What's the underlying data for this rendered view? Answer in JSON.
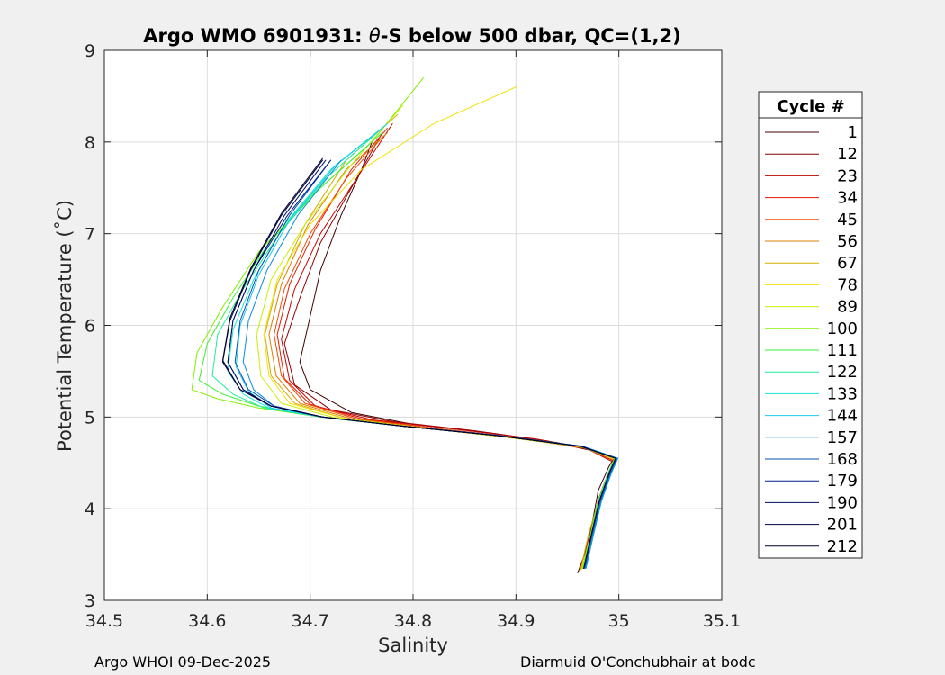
{
  "chart_data": {
    "type": "line",
    "title": "Argo WMO 6901931: θ-S below 500 dbar,  QC=(1,2)",
    "title_parts": {
      "prefix": "Argo WMO 6901931: ",
      "theta": "θ",
      "suffix": "-S below 500 dbar,  QC=(1,2)"
    },
    "xlabel": "Salinity",
    "ylabel": "Potential Temperature (˚C)",
    "xlim": [
      34.5,
      35.1
    ],
    "ylim": [
      3,
      9
    ],
    "xticks": [
      34.5,
      34.6,
      34.7,
      34.8,
      34.9,
      35,
      35.1
    ],
    "xtick_labels": [
      "34.5",
      "34.6",
      "34.7",
      "34.8",
      "34.9",
      "35",
      "35.1"
    ],
    "yticks": [
      3,
      4,
      5,
      6,
      7,
      8,
      9
    ],
    "ytick_labels": [
      "3",
      "4",
      "5",
      "6",
      "7",
      "8",
      "9"
    ],
    "grid": true,
    "legend": {
      "title": "Cycle #",
      "placement": "right",
      "entries": [
        {
          "label": "1",
          "color": "#400000"
        },
        {
          "label": "12",
          "color": "#8c0000"
        },
        {
          "label": "23",
          "color": "#c80000"
        },
        {
          "label": "34",
          "color": "#e61a00"
        },
        {
          "label": "45",
          "color": "#f04b00"
        },
        {
          "label": "56",
          "color": "#dc7d00"
        },
        {
          "label": "67",
          "color": "#d7aa00"
        },
        {
          "label": "78",
          "color": "#f0e100"
        },
        {
          "label": "89",
          "color": "#c8f000"
        },
        {
          "label": "100",
          "color": "#82f000"
        },
        {
          "label": "111",
          "color": "#3cf032"
        },
        {
          "label": "122",
          "color": "#1ef096"
        },
        {
          "label": "133",
          "color": "#14e6d2"
        },
        {
          "label": "144",
          "color": "#14c8f0"
        },
        {
          "label": "157",
          "color": "#0a8cdc"
        },
        {
          "label": "168",
          "color": "#0550b4"
        },
        {
          "label": "179",
          "color": "#001e8c"
        },
        {
          "label": "190",
          "color": "#000a64"
        },
        {
          "label": "201",
          "color": "#000046"
        },
        {
          "label": "212",
          "color": "#000032"
        }
      ]
    },
    "series": [
      {
        "name": "1",
        "x": [
          34.96,
          34.97,
          34.975,
          34.98,
          34.99,
          34.995,
          34.98,
          34.94,
          34.88,
          34.8,
          34.74,
          34.7,
          34.69,
          34.7,
          34.71,
          34.73,
          34.75,
          34.76
        ],
        "y": [
          3.3,
          3.6,
          3.9,
          4.2,
          4.45,
          4.55,
          4.62,
          4.72,
          4.82,
          4.92,
          5.05,
          5.3,
          5.6,
          6.1,
          6.6,
          7.2,
          7.7,
          8.0
        ]
      },
      {
        "name": "12",
        "x": [
          34.965,
          34.972,
          34.98,
          34.99,
          34.995,
          34.975,
          34.93,
          34.86,
          34.78,
          34.72,
          34.685,
          34.675,
          34.69,
          34.71,
          34.74,
          34.77
        ],
        "y": [
          3.35,
          3.7,
          4.1,
          4.4,
          4.52,
          4.63,
          4.74,
          4.85,
          4.95,
          5.08,
          5.35,
          5.8,
          6.3,
          6.9,
          7.5,
          8.1
        ]
      },
      {
        "name": "23",
        "x": [
          34.962,
          34.97,
          34.978,
          34.99,
          34.996,
          34.97,
          34.92,
          34.84,
          34.76,
          34.705,
          34.68,
          34.672,
          34.685,
          34.71,
          34.745,
          34.78
        ],
        "y": [
          3.32,
          3.65,
          4.0,
          4.35,
          4.5,
          4.65,
          4.76,
          4.87,
          4.97,
          5.12,
          5.4,
          5.85,
          6.4,
          7.0,
          7.6,
          8.2
        ]
      },
      {
        "name": "34",
        "x": [
          34.965,
          34.972,
          34.98,
          34.992,
          34.997,
          34.97,
          34.9,
          34.82,
          34.75,
          34.7,
          34.675,
          34.668,
          34.68,
          34.705,
          34.74,
          34.775
        ],
        "y": [
          3.35,
          3.7,
          4.1,
          4.4,
          4.53,
          4.66,
          4.78,
          4.88,
          4.98,
          5.14,
          5.42,
          5.9,
          6.45,
          7.05,
          7.7,
          8.15
        ]
      },
      {
        "name": "45",
        "x": [
          34.964,
          34.972,
          34.98,
          34.99,
          34.996,
          34.968,
          34.9,
          34.82,
          34.745,
          34.695,
          34.672,
          34.665,
          34.675,
          34.7,
          34.735,
          34.77
        ],
        "y": [
          3.35,
          3.68,
          4.05,
          4.38,
          4.52,
          4.66,
          4.77,
          4.88,
          4.98,
          5.15,
          5.45,
          5.9,
          6.4,
          7.0,
          7.6,
          8.05
        ]
      },
      {
        "name": "56",
        "x": [
          34.965,
          34.972,
          34.98,
          34.99,
          34.997,
          34.967,
          34.895,
          34.815,
          34.74,
          34.69,
          34.667,
          34.66,
          34.672,
          34.698,
          34.735,
          34.775
        ],
        "y": [
          3.35,
          3.7,
          4.1,
          4.4,
          4.54,
          4.67,
          4.78,
          4.88,
          4.98,
          5.15,
          5.45,
          5.9,
          6.45,
          7.1,
          7.7,
          8.1
        ]
      },
      {
        "name": "67",
        "x": [
          34.963,
          34.97,
          34.98,
          34.99,
          34.996,
          34.966,
          34.89,
          34.81,
          34.735,
          34.685,
          34.662,
          34.656,
          34.668,
          34.695,
          34.735,
          34.785
        ],
        "y": [
          3.34,
          3.7,
          4.08,
          4.4,
          4.54,
          4.67,
          4.78,
          4.88,
          4.98,
          5.15,
          5.45,
          5.9,
          6.45,
          7.1,
          7.8,
          8.3
        ]
      },
      {
        "name": "78",
        "x": [
          34.964,
          34.972,
          34.98,
          34.99,
          34.996,
          34.965,
          34.89,
          34.81,
          34.735,
          34.68,
          34.66,
          34.655,
          34.668,
          34.7,
          34.75,
          34.82,
          34.9
        ],
        "y": [
          3.34,
          3.7,
          4.08,
          4.4,
          4.54,
          4.67,
          4.78,
          4.88,
          4.98,
          5.15,
          5.45,
          5.9,
          6.5,
          7.1,
          7.7,
          8.2,
          8.6
        ]
      },
      {
        "name": "89",
        "x": [
          34.964,
          34.972,
          34.98,
          34.99,
          34.996,
          34.964,
          34.885,
          34.8,
          34.725,
          34.672,
          34.652,
          34.648,
          34.662,
          34.695,
          34.74,
          34.79
        ],
        "y": [
          3.34,
          3.7,
          4.08,
          4.4,
          4.55,
          4.68,
          4.79,
          4.89,
          4.99,
          5.15,
          5.45,
          5.9,
          6.5,
          7.1,
          7.75,
          8.4
        ]
      },
      {
        "name": "100",
        "x": [
          34.965,
          34.972,
          34.98,
          34.99,
          34.996,
          34.962,
          34.88,
          34.79,
          34.71,
          34.65,
          34.61,
          34.585,
          34.59,
          34.615,
          34.65,
          34.7,
          34.76,
          34.81
        ],
        "y": [
          3.35,
          3.7,
          4.08,
          4.4,
          4.55,
          4.68,
          4.8,
          4.9,
          5.0,
          5.1,
          5.2,
          5.3,
          5.7,
          6.2,
          6.8,
          7.4,
          8.0,
          8.7
        ]
      },
      {
        "name": "111",
        "x": [
          34.965,
          34.972,
          34.98,
          34.99,
          34.996,
          34.962,
          34.88,
          34.79,
          34.71,
          34.65,
          34.615,
          34.592,
          34.6,
          34.625,
          34.66,
          34.71,
          34.77
        ],
        "y": [
          3.35,
          3.7,
          4.08,
          4.4,
          4.55,
          4.68,
          4.8,
          4.9,
          5.0,
          5.12,
          5.25,
          5.4,
          5.8,
          6.3,
          6.9,
          7.5,
          8.1
        ]
      },
      {
        "name": "122",
        "x": [
          34.966,
          34.973,
          34.98,
          34.99,
          34.997,
          34.963,
          34.88,
          34.79,
          34.71,
          34.655,
          34.625,
          34.605,
          34.61,
          34.635,
          34.67,
          34.715,
          34.765
        ],
        "y": [
          3.35,
          3.7,
          4.08,
          4.4,
          4.55,
          4.68,
          4.8,
          4.9,
          5.0,
          5.1,
          5.25,
          5.45,
          5.9,
          6.4,
          7.0,
          7.6,
          8.1
        ]
      },
      {
        "name": "133",
        "x": [
          34.967,
          34.974,
          34.982,
          34.992,
          34.998,
          34.964,
          34.882,
          34.79,
          34.712,
          34.66,
          34.635,
          34.62,
          34.625,
          34.645,
          34.675,
          34.72,
          34.77
        ],
        "y": [
          3.35,
          3.7,
          4.08,
          4.4,
          4.55,
          4.68,
          4.8,
          4.9,
          5.0,
          5.1,
          5.25,
          5.5,
          5.95,
          6.5,
          7.1,
          7.7,
          8.15
        ]
      },
      {
        "name": "144",
        "x": [
          34.968,
          34.975,
          34.983,
          34.993,
          34.999,
          34.965,
          34.883,
          34.79,
          34.712,
          34.662,
          34.64,
          34.628,
          34.632,
          34.65,
          34.68,
          34.725,
          34.775
        ],
        "y": [
          3.35,
          3.7,
          4.08,
          4.4,
          4.55,
          4.68,
          4.8,
          4.9,
          5.0,
          5.1,
          5.28,
          5.55,
          6.0,
          6.55,
          7.15,
          7.75,
          8.2
        ]
      },
      {
        "name": "157",
        "x": [
          34.968,
          34.975,
          34.983,
          34.993,
          34.999,
          34.965,
          34.883,
          34.79,
          34.712,
          34.665,
          34.645,
          34.635,
          34.64,
          34.658,
          34.688,
          34.73
        ],
        "y": [
          3.35,
          3.7,
          4.08,
          4.4,
          4.55,
          4.68,
          4.8,
          4.9,
          5.0,
          5.12,
          5.3,
          5.6,
          6.05,
          6.6,
          7.2,
          7.8
        ]
      },
      {
        "name": "168",
        "x": [
          34.967,
          34.974,
          34.982,
          34.992,
          34.998,
          34.964,
          34.882,
          34.79,
          34.712,
          34.665,
          34.64,
          34.627,
          34.632,
          34.65,
          34.68,
          34.72
        ],
        "y": [
          3.35,
          3.7,
          4.08,
          4.4,
          4.55,
          4.68,
          4.8,
          4.9,
          5.0,
          5.12,
          5.3,
          5.6,
          6.05,
          6.6,
          7.2,
          7.8
        ]
      },
      {
        "name": "179",
        "x": [
          34.966,
          34.973,
          34.981,
          34.991,
          34.997,
          34.963,
          34.88,
          34.79,
          34.712,
          34.662,
          34.635,
          34.62,
          34.625,
          34.645,
          34.678,
          34.72
        ],
        "y": [
          3.35,
          3.7,
          4.08,
          4.4,
          4.55,
          4.68,
          4.8,
          4.9,
          5.0,
          5.12,
          5.3,
          5.6,
          6.05,
          6.6,
          7.2,
          7.8
        ]
      },
      {
        "name": "190",
        "x": [
          34.966,
          34.973,
          34.981,
          34.991,
          34.997,
          34.963,
          34.88,
          34.79,
          34.712,
          34.662,
          34.635,
          34.62,
          34.625,
          34.645,
          34.675,
          34.715
        ],
        "y": [
          3.35,
          3.7,
          4.08,
          4.4,
          4.55,
          4.68,
          4.8,
          4.9,
          5.0,
          5.12,
          5.3,
          5.6,
          6.05,
          6.6,
          7.2,
          7.8
        ]
      },
      {
        "name": "201",
        "x": [
          34.966,
          34.973,
          34.981,
          34.991,
          34.997,
          34.963,
          34.88,
          34.79,
          34.712,
          34.662,
          34.632,
          34.615,
          34.622,
          34.642,
          34.672,
          34.712
        ],
        "y": [
          3.35,
          3.7,
          4.08,
          4.4,
          4.55,
          4.68,
          4.8,
          4.9,
          5.0,
          5.12,
          5.3,
          5.6,
          6.05,
          6.6,
          7.2,
          7.8
        ]
      },
      {
        "name": "212",
        "x": [
          34.966,
          34.973,
          34.981,
          34.991,
          34.997,
          34.963,
          34.88,
          34.79,
          34.712,
          34.662,
          34.632,
          34.615,
          34.622,
          34.642,
          34.672,
          34.712
        ],
        "y": [
          3.35,
          3.7,
          4.08,
          4.4,
          4.55,
          4.68,
          4.8,
          4.9,
          5.0,
          5.12,
          5.3,
          5.62,
          6.08,
          6.62,
          7.22,
          7.82
        ]
      }
    ],
    "footer_left": "Argo WHOI 09-Dec-2025",
    "footer_right": "Diarmuid O'Conchubhair at bodc"
  }
}
